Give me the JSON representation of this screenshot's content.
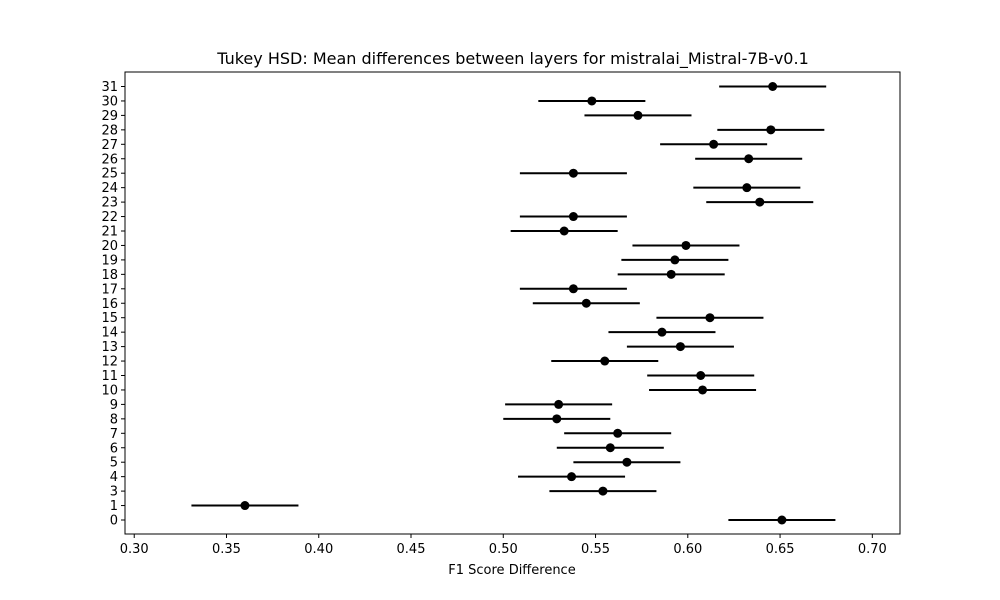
{
  "chart_data": {
    "type": "scatter",
    "title": "Tukey HSD: Mean differences between layers for mistralai_Mistral-7B-v0.1",
    "xlabel": "F1 Score Difference",
    "ylabel": "",
    "xlim": [
      0.295,
      0.715
    ],
    "x_ticks": [
      "0.30",
      "0.35",
      "0.40",
      "0.45",
      "0.50",
      "0.55",
      "0.60",
      "0.65",
      "0.70"
    ],
    "grid": false,
    "marker_color": "#000000",
    "categories": [
      "0",
      "1",
      "3",
      "4",
      "5",
      "6",
      "7",
      "8",
      "9",
      "10",
      "11",
      "12",
      "13",
      "14",
      "15",
      "16",
      "17",
      "18",
      "19",
      "20",
      "21",
      "22",
      "23",
      "24",
      "25",
      "26",
      "27",
      "28",
      "29",
      "30",
      "31"
    ],
    "means": [
      0.651,
      0.36,
      0.554,
      0.537,
      0.567,
      0.558,
      0.562,
      0.529,
      0.53,
      0.608,
      0.607,
      0.555,
      0.596,
      0.586,
      0.612,
      0.545,
      0.538,
      0.591,
      0.593,
      0.599,
      0.533,
      0.538,
      0.639,
      0.632,
      0.538,
      0.633,
      0.614,
      0.645,
      0.573,
      0.548,
      0.646
    ],
    "ci_half_width": 0.029
  }
}
